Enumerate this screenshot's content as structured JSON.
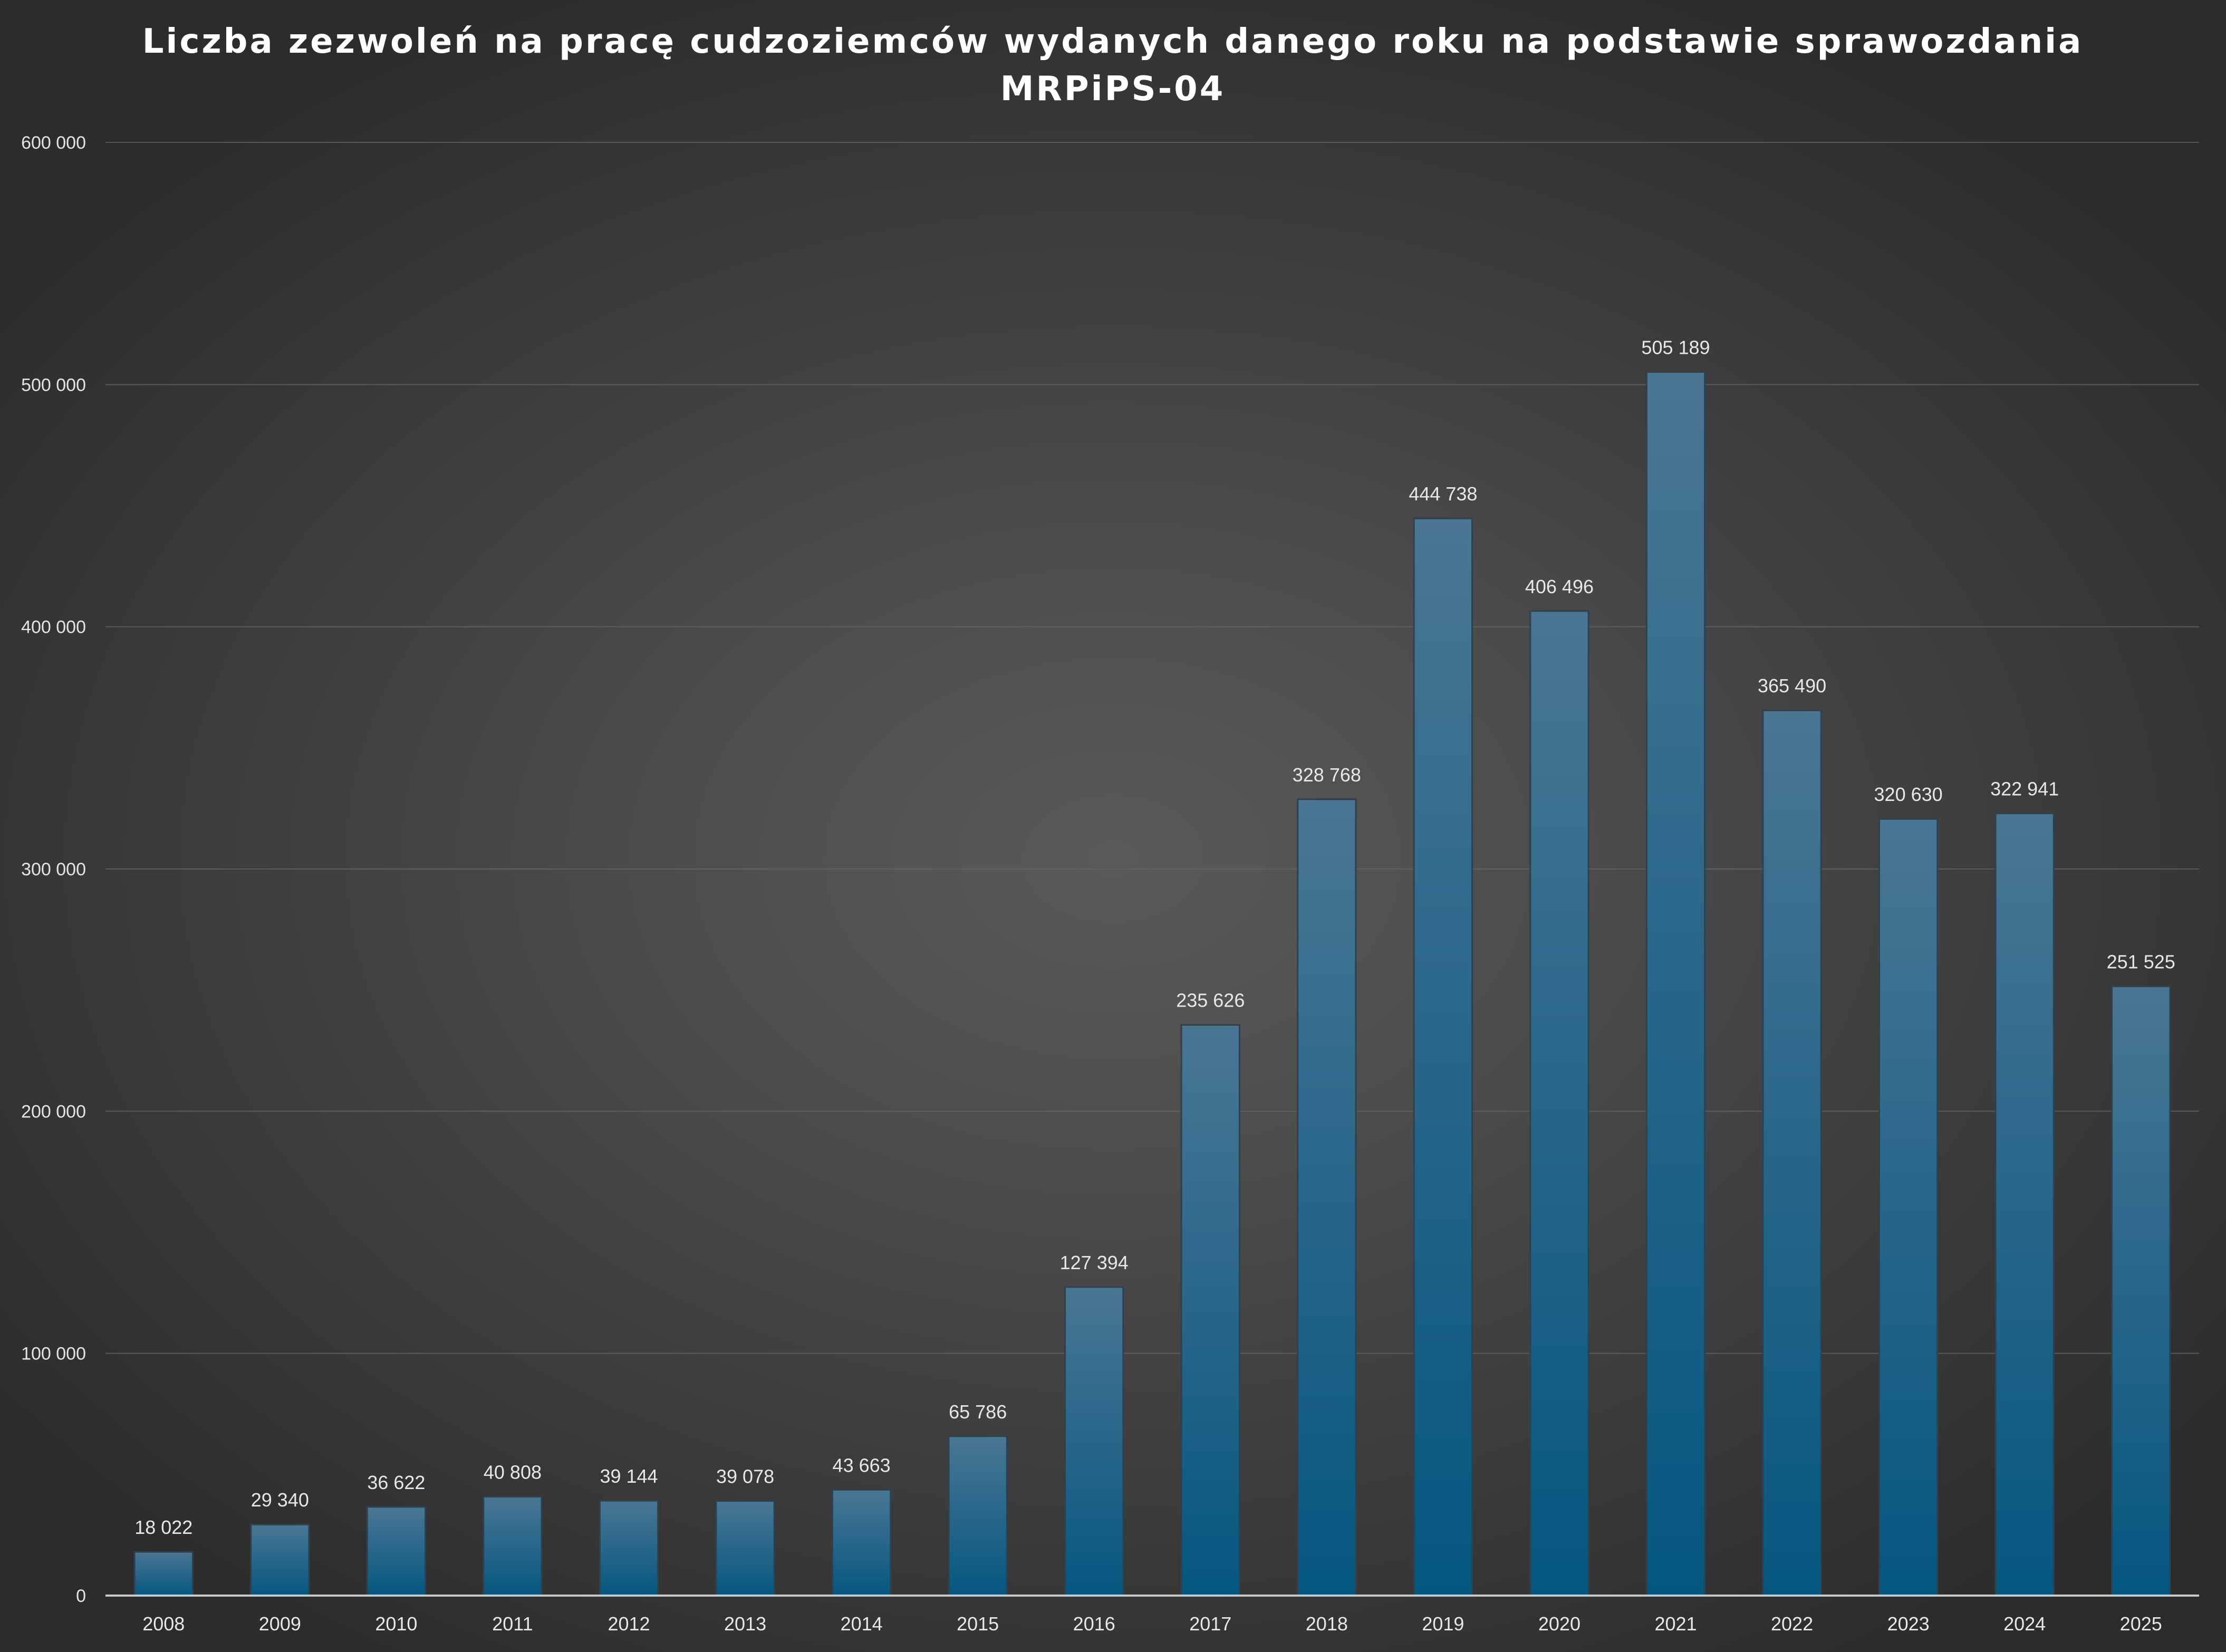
{
  "colors": {
    "bar_top": "#4a7694",
    "bar_bottom": "#05577f",
    "bar_stroke": "#2b4250"
  },
  "chart_data": {
    "type": "bar",
    "title_lines": [
      "Liczba zezwoleń na pracę cudzoziemców wydanych danego roku na podstawie sprawozdania",
      "MRPiPS-04"
    ],
    "xlabel": "",
    "ylabel": "",
    "categories": [
      "2008",
      "2009",
      "2010",
      "2011",
      "2012",
      "2013",
      "2014",
      "2015",
      "2016",
      "2017",
      "2018",
      "2019",
      "2020",
      "2021",
      "2022",
      "2023",
      "2024",
      "2025"
    ],
    "values": [
      18022,
      29340,
      36622,
      40808,
      39144,
      39078,
      43663,
      65786,
      127394,
      235626,
      328768,
      444738,
      406496,
      505189,
      365490,
      320630,
      322941,
      251525
    ],
    "value_labels": [
      "18 022",
      "29 340",
      "36 622",
      "40 808",
      "39 144",
      "39 078",
      "43 663",
      "65 786",
      "127 394",
      "235 626",
      "328 768",
      "444 738",
      "406 496",
      "505 189",
      "365 490",
      "320 630",
      "322 941",
      "251 525"
    ],
    "ylim": [
      0,
      600000
    ],
    "yticks": [
      0,
      100000,
      200000,
      300000,
      400000,
      500000,
      600000
    ],
    "ytick_labels": [
      "0",
      "100 000",
      "200 000",
      "300 000",
      "400 000",
      "500 000",
      "600 000"
    ],
    "grid": true,
    "legend": "none"
  }
}
